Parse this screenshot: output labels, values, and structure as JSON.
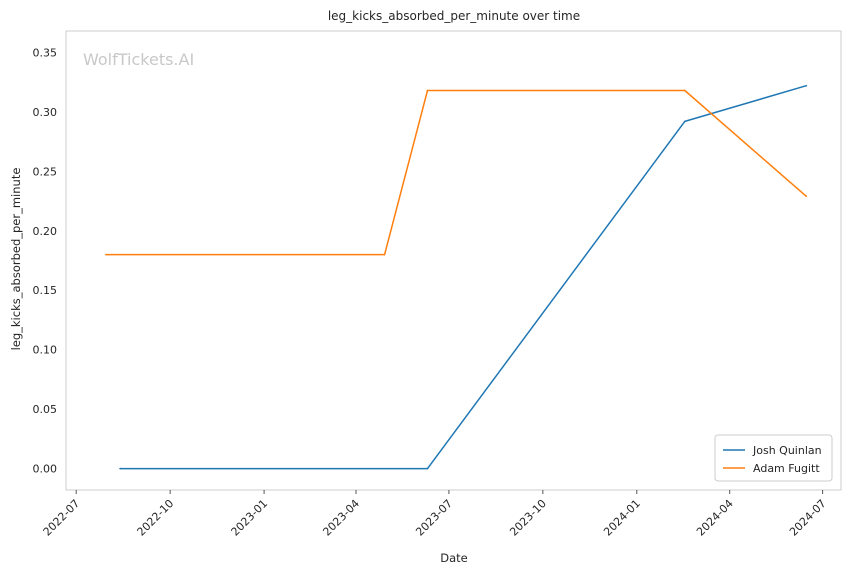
{
  "chart_data": {
    "type": "line",
    "title": "leg_kicks_absorbed_per_minute over time",
    "xlabel": "Date",
    "ylabel": "leg_kicks_absorbed_per_minute",
    "watermark": "WolfTickets.AI",
    "x_ticks": [
      "2022-07",
      "2022-10",
      "2023-01",
      "2023-04",
      "2023-07",
      "2023-10",
      "2024-01",
      "2024-04",
      "2024-07"
    ],
    "y_ticks": [
      "0.00",
      "0.05",
      "0.10",
      "0.15",
      "0.20",
      "0.25",
      "0.30",
      "0.35"
    ],
    "xlim": [
      "2022-06-21",
      "2024-07-19"
    ],
    "ylim": [
      -0.018,
      0.368
    ],
    "grid": true,
    "legend_position": "lower-right",
    "series": [
      {
        "name": "Josh Quinlan",
        "color": "#1f77b4",
        "points": [
          {
            "x": "2022-08-13",
            "y": 0.0
          },
          {
            "x": "2023-06-10",
            "y": 0.0
          },
          {
            "x": "2024-02-17",
            "y": 0.292
          },
          {
            "x": "2024-06-15",
            "y": 0.322
          }
        ]
      },
      {
        "name": "Adam Fugitt",
        "color": "#ff7f0e",
        "points": [
          {
            "x": "2022-07-30",
            "y": 0.18
          },
          {
            "x": "2023-04-29",
            "y": 0.18
          },
          {
            "x": "2023-06-10",
            "y": 0.318
          },
          {
            "x": "2024-02-17",
            "y": 0.318
          },
          {
            "x": "2024-06-15",
            "y": 0.229
          }
        ]
      }
    ]
  }
}
